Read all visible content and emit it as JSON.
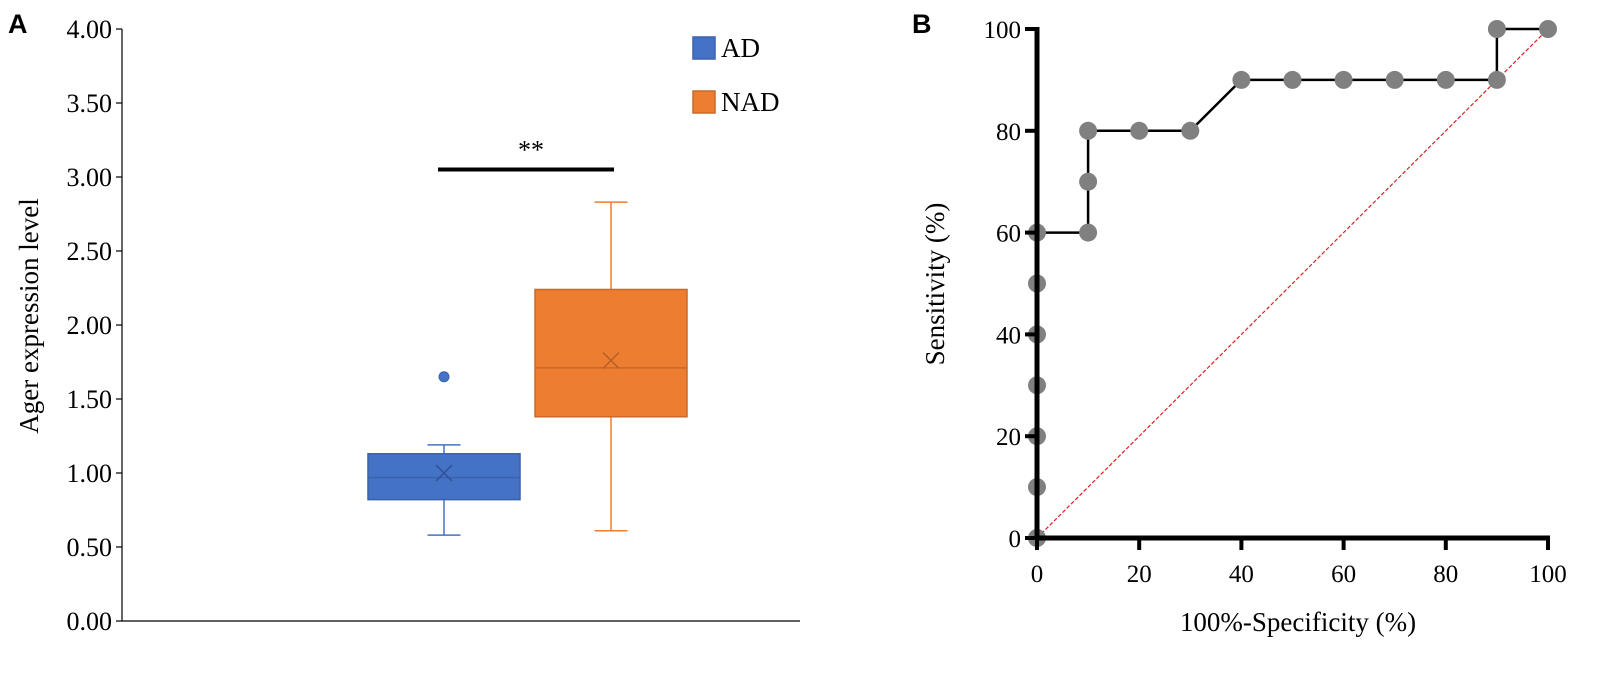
{
  "chart_data": [
    {
      "panel": "A",
      "type": "box",
      "ylabel": "Ager expression level",
      "ylim": [
        0,
        4
      ],
      "yticks": [
        "0.00",
        "0.50",
        "1.00",
        "1.50",
        "2.00",
        "2.50",
        "3.00",
        "3.50",
        "4.00"
      ],
      "grid": false,
      "legend_position": "top-right",
      "series": [
        {
          "name": "AD",
          "color": "#4472c4",
          "whisker_low": 0.58,
          "q1": 0.82,
          "median": 0.97,
          "q3": 1.13,
          "whisker_high": 1.19,
          "mean": 1.0,
          "outliers": [
            1.65
          ]
        },
        {
          "name": "NAD",
          "color": "#ed7d31",
          "whisker_low": 0.61,
          "q1": 1.38,
          "median": 1.71,
          "q3": 2.24,
          "whisker_high": 2.83,
          "mean": 1.76,
          "outliers": []
        }
      ],
      "annotation": {
        "text": "**",
        "level": 3.03
      }
    },
    {
      "panel": "B",
      "type": "line",
      "xlabel": "100%-Specificity (%)",
      "ylabel": "Sensitivity (%)",
      "xlim": [
        0,
        100
      ],
      "ylim": [
        0,
        100
      ],
      "xticks": [
        "0",
        "20",
        "40",
        "60",
        "80",
        "100"
      ],
      "yticks": [
        "0",
        "20",
        "40",
        "60",
        "80",
        "100"
      ],
      "grid": false,
      "roc_color": "#000000",
      "point_color": "#808080",
      "reference_color": "#e02020",
      "roc_curve": [
        [
          0,
          0
        ],
        [
          0,
          60
        ],
        [
          10,
          60
        ],
        [
          10,
          80
        ],
        [
          30,
          80
        ],
        [
          40,
          90
        ],
        [
          90,
          90
        ],
        [
          90,
          100
        ],
        [
          100,
          100
        ]
      ],
      "points": [
        [
          0,
          0
        ],
        [
          0,
          10
        ],
        [
          0,
          20
        ],
        [
          0,
          30
        ],
        [
          0,
          40
        ],
        [
          0,
          50
        ],
        [
          0,
          60
        ],
        [
          10,
          60
        ],
        [
          10,
          70
        ],
        [
          10,
          80
        ],
        [
          20,
          80
        ],
        [
          30,
          80
        ],
        [
          40,
          90
        ],
        [
          50,
          90
        ],
        [
          60,
          90
        ],
        [
          70,
          90
        ],
        [
          80,
          90
        ],
        [
          90,
          90
        ],
        [
          90,
          100
        ],
        [
          100,
          100
        ]
      ],
      "reference_line": [
        [
          0,
          0
        ],
        [
          100,
          100
        ]
      ]
    }
  ]
}
